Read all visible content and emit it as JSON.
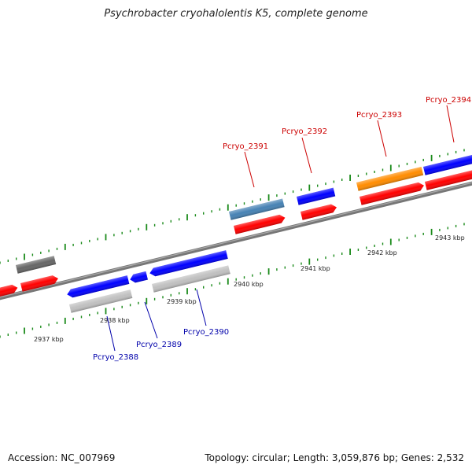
{
  "title": "Psychrobacter cryohalolentis K5, complete genome",
  "footer": {
    "accession": "Accession: NC_007969",
    "summary": "Topology: circular; Length: 3,059,876 bp; Genes: 2,532"
  },
  "ticks": [
    {
      "label": "2937 kbp"
    },
    {
      "label": "2938 kbp"
    },
    {
      "label": "2939 kbp"
    },
    {
      "label": "2940 kbp"
    },
    {
      "label": "2941 kbp"
    },
    {
      "label": "2942 kbp"
    },
    {
      "label": "2943 kbp"
    }
  ],
  "colors": {
    "forward": "#ff0000",
    "reverse": "#0000ff",
    "gray": "#c0c0c0",
    "dark_gray": "#666666",
    "steel": "#4682b4",
    "orange": "#ff8c00",
    "backbone": "#777777",
    "tick": "#1a8a1a",
    "label_red": "#cc0000",
    "label_blue": "#0000aa"
  },
  "labels": [
    {
      "text": "Pcryo_2388",
      "color": "blue"
    },
    {
      "text": "Pcryo_2389",
      "color": "blue"
    },
    {
      "text": "Pcryo_2390",
      "color": "blue"
    },
    {
      "text": "Pcryo_2391",
      "color": "red"
    },
    {
      "text": "Pcryo_2392",
      "color": "red"
    },
    {
      "text": "Pcryo_2393",
      "color": "red"
    },
    {
      "text": "Pcryo_2394",
      "color": "red"
    }
  ]
}
